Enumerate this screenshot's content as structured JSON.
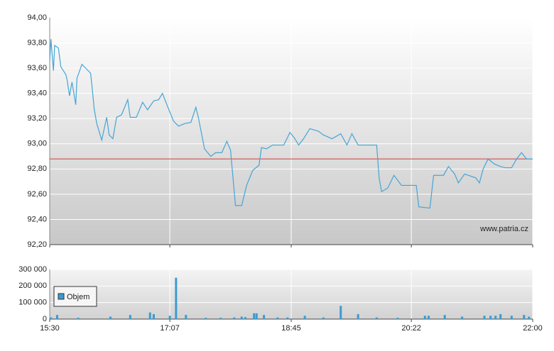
{
  "chart_data": [
    {
      "type": "line",
      "watermark": "www.patria.cz",
      "reference_line": 92.88,
      "reference_color": "#d04040",
      "xlim": [
        930,
        1320
      ],
      "ylim": [
        92.2,
        94.0
      ],
      "yticks": [
        {
          "value": 92.2,
          "label": "92,20"
        },
        {
          "value": 92.4,
          "label": "92,40"
        },
        {
          "value": 92.6,
          "label": "92,60"
        },
        {
          "value": 92.8,
          "label": "92,80"
        },
        {
          "value": 93.0,
          "label": "93,00"
        },
        {
          "value": 93.2,
          "label": "93,20"
        },
        {
          "value": 93.4,
          "label": "93,40"
        },
        {
          "value": 93.6,
          "label": "93,60"
        },
        {
          "value": 93.8,
          "label": "93,80"
        },
        {
          "value": 94.0,
          "label": "94,00"
        }
      ],
      "grid": true,
      "series": [
        {
          "color": "#45a5d6",
          "x": [
            930,
            931,
            933,
            934,
            937,
            939,
            943,
            944,
            946,
            948,
            951,
            952,
            956,
            959,
            963,
            964,
            966,
            968,
            972,
            976,
            978,
            981,
            984,
            988,
            993,
            995,
            1000,
            1005,
            1009,
            1014,
            1018,
            1021,
            1025,
            1030,
            1034,
            1039,
            1044,
            1048,
            1050,
            1055,
            1060,
            1064,
            1069,
            1073,
            1076,
            1080,
            1085,
            1089,
            1094,
            1099,
            1101,
            1105,
            1110,
            1119,
            1124,
            1128,
            1131,
            1135,
            1140,
            1147,
            1151,
            1158,
            1165,
            1170,
            1174,
            1179,
            1194,
            1196,
            1198,
            1203,
            1208,
            1214,
            1226,
            1228,
            1237,
            1240,
            1248,
            1252,
            1257,
            1260,
            1265,
            1274,
            1277,
            1280,
            1284,
            1289,
            1294,
            1298,
            1303,
            1307,
            1311,
            1315,
            1320
          ],
          "values": [
            93.66,
            93.83,
            93.58,
            93.78,
            93.76,
            93.61,
            93.55,
            93.51,
            93.38,
            93.49,
            93.31,
            93.52,
            93.63,
            93.6,
            93.56,
            93.47,
            93.27,
            93.16,
            93.03,
            93.21,
            93.07,
            93.04,
            93.21,
            93.23,
            93.35,
            93.21,
            93.21,
            93.33,
            93.27,
            93.34,
            93.35,
            93.4,
            93.3,
            93.18,
            93.14,
            93.16,
            93.17,
            93.29,
            93.21,
            92.96,
            92.9,
            92.93,
            92.93,
            93.02,
            92.95,
            92.51,
            92.51,
            92.67,
            92.79,
            92.83,
            92.97,
            92.96,
            92.99,
            92.99,
            93.09,
            93.04,
            92.99,
            93.04,
            93.12,
            93.1,
            93.07,
            93.04,
            93.08,
            92.99,
            93.08,
            92.99,
            92.99,
            92.73,
            92.62,
            92.65,
            92.75,
            92.67,
            92.67,
            92.5,
            92.49,
            92.75,
            92.75,
            92.82,
            92.76,
            92.69,
            92.76,
            92.73,
            92.69,
            92.8,
            92.88,
            92.84,
            92.82,
            92.81,
            92.81,
            92.88,
            92.93,
            92.88,
            92.88
          ]
        }
      ]
    },
    {
      "type": "bar",
      "xlim": [
        930,
        1320
      ],
      "ylim": [
        0,
        300000
      ],
      "xticks": [
        {
          "value": 930,
          "label": "15:30"
        },
        {
          "value": 1027,
          "label": "17:07"
        },
        {
          "value": 1125,
          "label": "18:45"
        },
        {
          "value": 1222,
          "label": "20:22"
        },
        {
          "value": 1320,
          "label": "22:00"
        }
      ],
      "yticks": [
        0,
        {
          "value": 100000,
          "label": "100 000"
        },
        {
          "value": 200000,
          "label": "200 000"
        },
        {
          "value": 300000,
          "label": "300 000"
        }
      ],
      "grid": true,
      "legend": "top-left",
      "series": [
        {
          "name": "Objem",
          "color": "#3b9bd0",
          "x": [
            931,
            936,
            953,
            979,
            995,
            1011,
            1014,
            1027,
            1032,
            1040,
            1056,
            1068,
            1079,
            1085,
            1088,
            1095,
            1097,
            1103,
            1114,
            1122,
            1136,
            1151,
            1165,
            1179,
            1194,
            1211,
            1233,
            1236,
            1249,
            1263,
            1281,
            1286,
            1290,
            1294,
            1303,
            1313,
            1317
          ],
          "values": [
            10000,
            25000,
            8000,
            15000,
            25000,
            40000,
            30000,
            20000,
            250000,
            25000,
            8000,
            8000,
            10000,
            15000,
            12000,
            35000,
            35000,
            25000,
            10000,
            10000,
            20000,
            10000,
            80000,
            30000,
            10000,
            8000,
            20000,
            20000,
            25000,
            15000,
            20000,
            20000,
            20000,
            30000,
            20000,
            25000,
            15000
          ]
        }
      ]
    }
  ]
}
